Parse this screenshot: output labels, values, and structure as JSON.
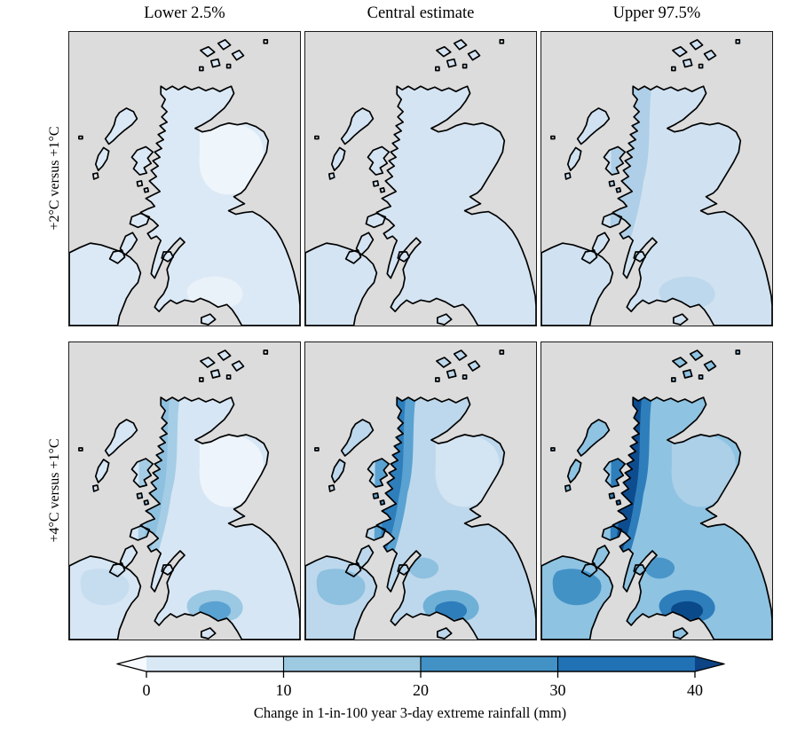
{
  "figure": {
    "column_titles": [
      "Lower 2.5%",
      "Central estimate",
      "Upper 97.5%"
    ],
    "row_labels": [
      "+2°C versus +1°C",
      "+4°C versus +1°C"
    ]
  },
  "chart_data": {
    "type": "heatmap",
    "subtype": "gridded geographic map panels (choropleth of rainfall change over Scotland, Northern Ireland and northern England)",
    "layout": {
      "rows": 2,
      "columns": 3,
      "legend_position": "bottom"
    },
    "rows": [
      "+2°C versus +1°C",
      "+4°C versus +1°C"
    ],
    "columns": [
      "Lower 2.5%",
      "Central estimate",
      "Upper 97.5%"
    ],
    "colorbar": {
      "label": "Change in 1-in-100 year 3-day extreme rainfall (mm)",
      "ticks": [
        "0",
        "10",
        "20",
        "30",
        "40"
      ],
      "unit": "mm",
      "orientation": "horizontal",
      "extend": "both",
      "bins": [
        {
          "range": "0-10",
          "color": "#d9e8f5"
        },
        {
          "range": "10-20",
          "color": "#9dc9e1"
        },
        {
          "range": "20-30",
          "color": "#4292c6"
        },
        {
          "range": "30-40",
          "color": "#2171b5"
        }
      ],
      "under_color": "#f6faff",
      "over_color": "#0c4485"
    },
    "panels": [
      {
        "row": "+2°C versus +1°C",
        "column": "Lower 2.5%",
        "summary": "Mostly 0-10 mm everywhere; scattered near-0 (whitish) cells in the north-east and Borders"
      },
      {
        "row": "+2°C versus +1°C",
        "column": "Central estimate",
        "summary": "Nearly uniform 0-10 mm across all land"
      },
      {
        "row": "+2°C versus +1°C",
        "column": "Upper 97.5%",
        "summary": "0-10 mm in the east; 10-20 mm band along the western Highlands and southern hills"
      },
      {
        "row": "+4°C versus +1°C",
        "column": "Lower 2.5%",
        "summary": "0-10 mm with near-0 cells in the north-east; 10-20 mm on the western Highlands; isolated 20-30 mm cells in the Southern Uplands and Galloway"
      },
      {
        "row": "+4°C versus +1°C",
        "column": "Central estimate",
        "summary": "10-20 mm widely; 20-30 mm along the western Highlands, Southern Uplands and Northern Ireland hills; local 30-40 mm cells in Galloway"
      },
      {
        "row": "+4°C versus +1°C",
        "column": "Upper 97.5%",
        "summary": "20-30 mm widely; 30-40 mm along the western Highlands and Southern Uplands; local >40 mm cells in the north-west mountains and Galloway"
      }
    ],
    "colors": {
      "sea": "#dcdcdc",
      "coastline": "#000000",
      "background": "#ffffff"
    },
    "panel_styles": [
      {
        "base": "#dbe9f6",
        "ne": "#eef5fb",
        "band": null,
        "core": null,
        "uplands": "#e9f1f9",
        "uplandsCore": null,
        "ni": null,
        "clyde": null,
        "galloway": null
      },
      {
        "base": "#d4e4f3",
        "ne": null,
        "band": null,
        "core": null,
        "uplands": null,
        "uplandsCore": null,
        "ni": null,
        "clyde": null,
        "galloway": null
      },
      {
        "base": "#d0e2f1",
        "ne": null,
        "band": "#aecfe7",
        "core": null,
        "uplands": "#bdd8ec",
        "uplandsCore": null,
        "ni": null,
        "clyde": null,
        "galloway": null
      },
      {
        "base": "#d6e6f4",
        "ne": "#edf4fb",
        "band": "#a5cde6",
        "core": "#8ec0df",
        "uplands": "#9bc8e3",
        "uplandsCore": "#5aa2d2",
        "ni": "#c6ddef",
        "clyde": null,
        "galloway": "#2b7abc"
      },
      {
        "base": "#bdd8ec",
        "ne": "#d3e4f2",
        "band": "#5aa2d2",
        "core": "#2e7ebc",
        "uplands": "#6fb0d7",
        "uplandsCore": "#2e7ebc",
        "ni": "#8ec0df",
        "clyde": "#8ec0df",
        "galloway": "#1a5fa6"
      },
      {
        "base": "#8ec3e2",
        "ne": "#abd0e8",
        "band": "#2e7ebc",
        "core": "#0d4d8f",
        "uplands": "#2e7ebc",
        "uplandsCore": "#0b4a8a",
        "ni": "#4292c6",
        "clyde": "#4a96c9",
        "galloway": "#0b4a8a"
      }
    ]
  }
}
